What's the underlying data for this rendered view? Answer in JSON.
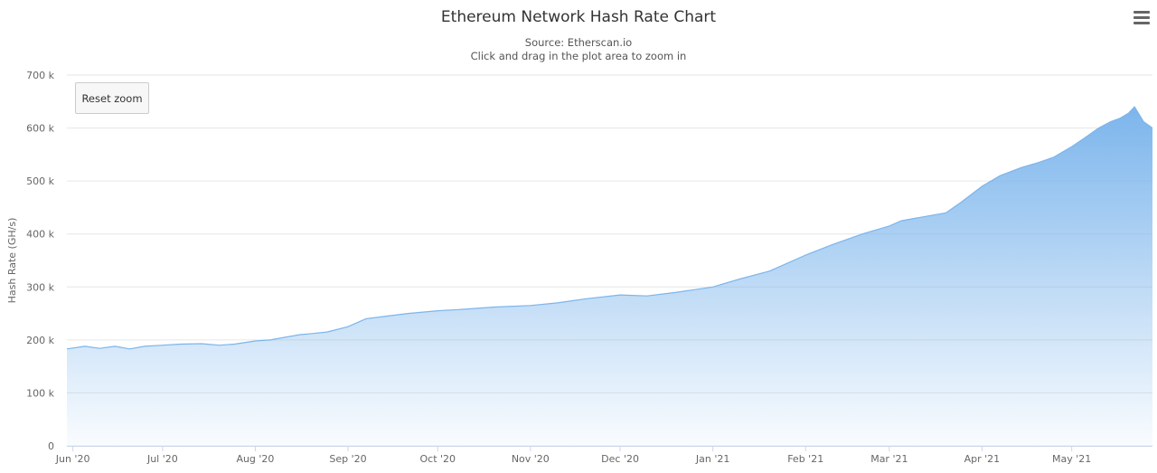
{
  "header": {
    "title": "Ethereum Network Hash Rate Chart",
    "source": "Source: Etherscan.io",
    "hint": "Click and drag in the plot area to zoom in"
  },
  "controls": {
    "reset_zoom_label": "Reset zoom",
    "menu_icon": "hamburger-menu-icon"
  },
  "colors": {
    "series": "#7cb5ec",
    "grid": "#e6e6e6",
    "axis_text": "#666666"
  },
  "chart_data": {
    "type": "area",
    "title": "Ethereum Network Hash Rate Chart",
    "subtitle": "Source: Etherscan.io",
    "xlabel": "",
    "ylabel": "Hash Rate (GH/s)",
    "ylim": [
      0,
      700000
    ],
    "yticks": [
      0,
      100000,
      200000,
      300000,
      400000,
      500000,
      600000,
      700000
    ],
    "ytick_labels": [
      "0",
      "100 k",
      "200 k",
      "300 k",
      "400 k",
      "500 k",
      "600 k",
      "700 k"
    ],
    "xlim": [
      "2020-05-30",
      "2021-05-28"
    ],
    "xticks": [
      "2020-06-01",
      "2020-07-01",
      "2020-08-01",
      "2020-09-01",
      "2020-10-01",
      "2020-11-01",
      "2020-12-01",
      "2021-01-01",
      "2021-02-01",
      "2021-03-01",
      "2021-04-01",
      "2021-05-01"
    ],
    "xtick_labels": [
      "Jun '20",
      "Jul '20",
      "Aug '20",
      "Sep '20",
      "Oct '20",
      "Nov '20",
      "Dec '20",
      "Jan '21",
      "Feb '21",
      "Mar '21",
      "Apr '21",
      "May '21"
    ],
    "grid": true,
    "legend": "none",
    "series": [
      {
        "x": [
          "2020-05-30",
          "2020-06-05",
          "2020-06-10",
          "2020-06-15",
          "2020-06-20",
          "2020-06-25",
          "2020-07-01",
          "2020-07-07",
          "2020-07-14",
          "2020-07-20",
          "2020-07-25",
          "2020-08-01",
          "2020-08-06",
          "2020-08-11",
          "2020-08-16",
          "2020-08-20",
          "2020-08-25",
          "2020-09-01",
          "2020-09-07",
          "2020-09-14",
          "2020-09-21",
          "2020-10-01",
          "2020-10-10",
          "2020-10-20",
          "2020-11-01",
          "2020-11-10",
          "2020-11-20",
          "2020-12-01",
          "2020-12-10",
          "2020-12-20",
          "2021-01-01",
          "2021-01-10",
          "2021-01-20",
          "2021-02-01",
          "2021-02-10",
          "2021-02-20",
          "2021-03-01",
          "2021-03-05",
          "2021-03-10",
          "2021-03-15",
          "2021-03-20",
          "2021-03-25",
          "2021-04-01",
          "2021-04-07",
          "2021-04-14",
          "2021-04-20",
          "2021-04-25",
          "2021-05-01",
          "2021-05-05",
          "2021-05-10",
          "2021-05-14",
          "2021-05-17",
          "2021-05-20",
          "2021-05-22",
          "2021-05-25",
          "2021-05-28"
        ],
        "values": [
          183000,
          188000,
          184000,
          188000,
          183000,
          188000,
          190000,
          192000,
          193000,
          190000,
          192000,
          198000,
          200000,
          205000,
          210000,
          212000,
          215000,
          225000,
          240000,
          245000,
          250000,
          255000,
          258000,
          262000,
          265000,
          270000,
          278000,
          285000,
          283000,
          290000,
          300000,
          315000,
          330000,
          360000,
          380000,
          400000,
          415000,
          425000,
          430000,
          435000,
          440000,
          460000,
          490000,
          510000,
          525000,
          535000,
          545000,
          565000,
          580000,
          600000,
          612000,
          618000,
          628000,
          640000,
          612000,
          600000
        ]
      }
    ]
  }
}
